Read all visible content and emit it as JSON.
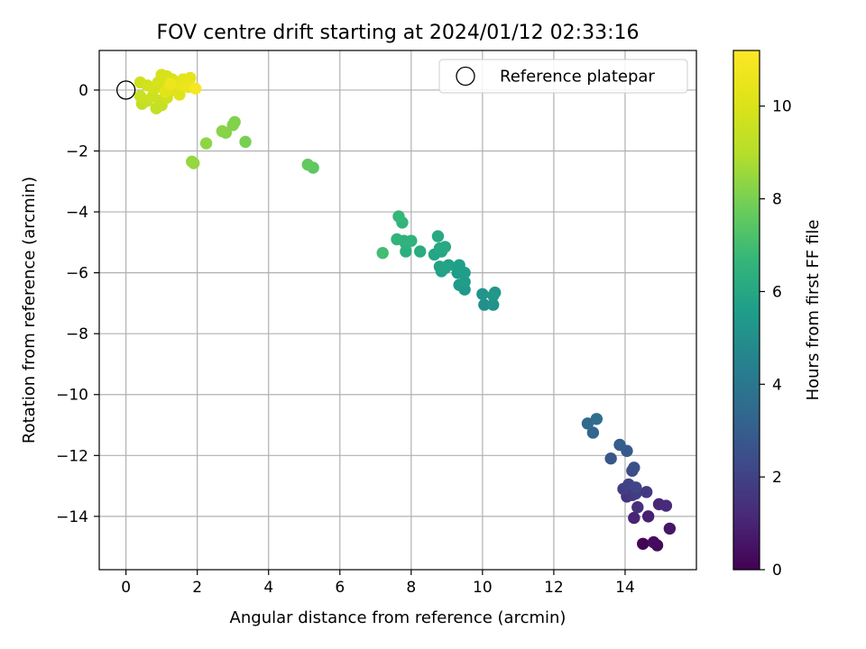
{
  "chart_data": {
    "type": "scatter",
    "title": "FOV centre drift starting at 2024/01/12 02:33:16",
    "xlabel": "Angular distance from reference (arcmin)",
    "ylabel": "Rotation from reference (arcmin)",
    "xlim": [
      -0.75,
      16.0
    ],
    "ylim": [
      -15.75,
      1.3
    ],
    "xticks": [
      0,
      2,
      4,
      6,
      8,
      10,
      12,
      14
    ],
    "yticks": [
      0,
      -2,
      -4,
      -6,
      -8,
      -10,
      -12,
      -14
    ],
    "xtick_labels": [
      "0",
      "2",
      "4",
      "6",
      "8",
      "10",
      "12",
      "14"
    ],
    "ytick_labels": [
      "0",
      "−2",
      "−4",
      "−6",
      "−8",
      "−10",
      "−12",
      "−14"
    ],
    "grid": true,
    "legend": {
      "position": "top-right",
      "label": "Reference platepar"
    },
    "reference_point": {
      "x": 0,
      "y": 0
    },
    "colorbar": {
      "label": "Hours from first FF file",
      "range": [
        0,
        11.2
      ],
      "ticks": [
        0,
        2,
        4,
        6,
        8,
        10
      ],
      "tick_labels": [
        "0",
        "2",
        "4",
        "6",
        "8",
        "10"
      ],
      "colormap": "viridis"
    },
    "points": [
      {
        "x": 14.5,
        "y": -14.9,
        "c": 0.1
      },
      {
        "x": 14.9,
        "y": -14.95,
        "c": 0.2
      },
      {
        "x": 14.8,
        "y": -14.85,
        "c": 0.3
      },
      {
        "x": 15.25,
        "y": -14.4,
        "c": 0.6
      },
      {
        "x": 14.65,
        "y": -14.0,
        "c": 0.9
      },
      {
        "x": 14.25,
        "y": -14.05,
        "c": 1.0
      },
      {
        "x": 14.95,
        "y": -13.6,
        "c": 1.1
      },
      {
        "x": 15.15,
        "y": -13.65,
        "c": 1.2
      },
      {
        "x": 14.35,
        "y": -13.7,
        "c": 1.4
      },
      {
        "x": 14.05,
        "y": -13.35,
        "c": 1.5
      },
      {
        "x": 14.2,
        "y": -13.3,
        "c": 1.6
      },
      {
        "x": 14.6,
        "y": -13.2,
        "c": 1.7
      },
      {
        "x": 14.3,
        "y": -13.25,
        "c": 1.8
      },
      {
        "x": 13.95,
        "y": -13.1,
        "c": 1.9
      },
      {
        "x": 14.1,
        "y": -12.95,
        "c": 2.0
      },
      {
        "x": 14.3,
        "y": -13.05,
        "c": 2.1
      },
      {
        "x": 14.2,
        "y": -12.5,
        "c": 2.3
      },
      {
        "x": 14.25,
        "y": -12.4,
        "c": 2.5
      },
      {
        "x": 13.6,
        "y": -12.1,
        "c": 2.7
      },
      {
        "x": 14.05,
        "y": -11.85,
        "c": 2.8
      },
      {
        "x": 13.85,
        "y": -11.65,
        "c": 3.0
      },
      {
        "x": 13.1,
        "y": -11.25,
        "c": 3.3
      },
      {
        "x": 12.95,
        "y": -10.95,
        "c": 3.5
      },
      {
        "x": 13.2,
        "y": -10.8,
        "c": 3.6
      },
      {
        "x": 10.05,
        "y": -7.05,
        "c": 5.0
      },
      {
        "x": 10.3,
        "y": -7.05,
        "c": 5.1
      },
      {
        "x": 10.0,
        "y": -6.7,
        "c": 5.2
      },
      {
        "x": 10.3,
        "y": -6.75,
        "c": 5.3
      },
      {
        "x": 10.35,
        "y": -6.65,
        "c": 5.35
      },
      {
        "x": 9.5,
        "y": -6.55,
        "c": 5.4
      },
      {
        "x": 9.35,
        "y": -6.4,
        "c": 5.45
      },
      {
        "x": 9.5,
        "y": -6.3,
        "c": 5.5
      },
      {
        "x": 9.3,
        "y": -6.0,
        "c": 5.55
      },
      {
        "x": 9.5,
        "y": -6.0,
        "c": 5.6
      },
      {
        "x": 9.35,
        "y": -5.75,
        "c": 5.65
      },
      {
        "x": 9.05,
        "y": -5.75,
        "c": 5.7
      },
      {
        "x": 8.85,
        "y": -5.95,
        "c": 5.75
      },
      {
        "x": 8.8,
        "y": -5.8,
        "c": 5.8
      },
      {
        "x": 8.95,
        "y": -5.85,
        "c": 5.85
      },
      {
        "x": 8.65,
        "y": -5.4,
        "c": 5.9
      },
      {
        "x": 8.85,
        "y": -5.3,
        "c": 5.95
      },
      {
        "x": 8.8,
        "y": -5.2,
        "c": 6.0
      },
      {
        "x": 8.95,
        "y": -5.15,
        "c": 6.05
      },
      {
        "x": 8.75,
        "y": -4.8,
        "c": 6.1
      },
      {
        "x": 8.25,
        "y": -5.3,
        "c": 6.2
      },
      {
        "x": 7.85,
        "y": -5.3,
        "c": 6.3
      },
      {
        "x": 7.85,
        "y": -5.05,
        "c": 6.4
      },
      {
        "x": 7.8,
        "y": -4.95,
        "c": 6.45
      },
      {
        "x": 8.0,
        "y": -4.95,
        "c": 6.5
      },
      {
        "x": 7.6,
        "y": -4.9,
        "c": 6.55
      },
      {
        "x": 7.75,
        "y": -4.35,
        "c": 6.6
      },
      {
        "x": 7.65,
        "y": -4.15,
        "c": 6.7
      },
      {
        "x": 7.2,
        "y": -5.35,
        "c": 7.0
      },
      {
        "x": 5.25,
        "y": -2.55,
        "c": 7.5
      },
      {
        "x": 5.1,
        "y": -2.45,
        "c": 7.6
      },
      {
        "x": 3.35,
        "y": -1.7,
        "c": 8.0
      },
      {
        "x": 3.05,
        "y": -1.05,
        "c": 8.1
      },
      {
        "x": 3.0,
        "y": -1.15,
        "c": 8.15
      },
      {
        "x": 2.8,
        "y": -1.4,
        "c": 8.2
      },
      {
        "x": 2.7,
        "y": -1.35,
        "c": 8.25
      },
      {
        "x": 2.25,
        "y": -1.75,
        "c": 8.35
      },
      {
        "x": 1.85,
        "y": -2.35,
        "c": 8.4
      },
      {
        "x": 1.9,
        "y": -2.4,
        "c": 8.45
      },
      {
        "x": 0.45,
        "y": -0.45,
        "c": 9.3
      },
      {
        "x": 0.85,
        "y": -0.6,
        "c": 9.35
      },
      {
        "x": 1.0,
        "y": -0.5,
        "c": 9.4
      },
      {
        "x": 0.6,
        "y": -0.35,
        "c": 9.45
      },
      {
        "x": 0.95,
        "y": -0.35,
        "c": 9.5
      },
      {
        "x": 0.4,
        "y": -0.2,
        "c": 9.55
      },
      {
        "x": 0.75,
        "y": -0.2,
        "c": 9.6
      },
      {
        "x": 1.15,
        "y": -0.25,
        "c": 9.65
      },
      {
        "x": 0.4,
        "y": 0.25,
        "c": 9.7
      },
      {
        "x": 0.6,
        "y": 0.15,
        "c": 9.75
      },
      {
        "x": 0.8,
        "y": 0.05,
        "c": 9.8
      },
      {
        "x": 0.9,
        "y": 0.25,
        "c": 9.85
      },
      {
        "x": 1.0,
        "y": 0.5,
        "c": 9.9
      },
      {
        "x": 1.15,
        "y": 0.45,
        "c": 9.95
      },
      {
        "x": 1.3,
        "y": 0.35,
        "c": 10.0
      },
      {
        "x": 1.45,
        "y": 0.25,
        "c": 10.05
      },
      {
        "x": 1.2,
        "y": 0.15,
        "c": 10.1
      },
      {
        "x": 1.35,
        "y": 0.0,
        "c": 10.15
      },
      {
        "x": 1.5,
        "y": -0.15,
        "c": 10.2
      },
      {
        "x": 1.1,
        "y": -0.05,
        "c": 10.25
      },
      {
        "x": 1.6,
        "y": 0.35,
        "c": 10.3
      },
      {
        "x": 1.8,
        "y": 0.4,
        "c": 10.4
      },
      {
        "x": 1.55,
        "y": 0.15,
        "c": 10.5
      },
      {
        "x": 1.75,
        "y": 0.1,
        "c": 10.6
      },
      {
        "x": 1.25,
        "y": 0.2,
        "c": 10.7
      },
      {
        "x": 1.95,
        "y": 0.05,
        "c": 11.0
      }
    ]
  }
}
